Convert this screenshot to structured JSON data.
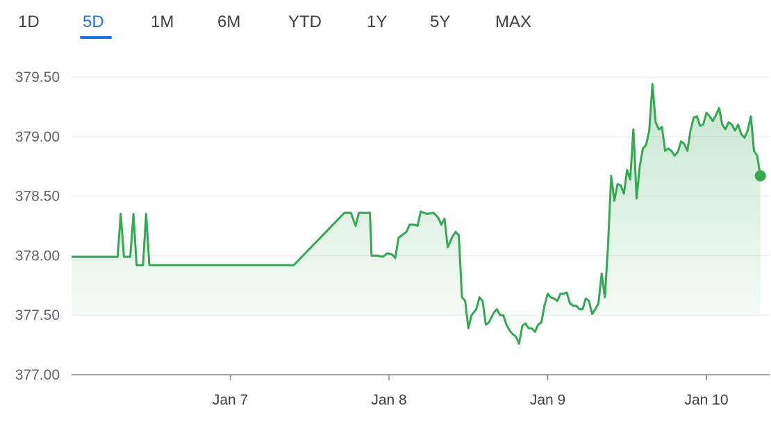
{
  "range_tabs": [
    {
      "label": "1D",
      "active": false
    },
    {
      "label": "5D",
      "active": true
    },
    {
      "label": "1M",
      "active": false
    },
    {
      "label": "6M",
      "active": false
    },
    {
      "label": "YTD",
      "active": false
    },
    {
      "label": "1Y",
      "active": false
    },
    {
      "label": "5Y",
      "active": false
    },
    {
      "label": "MAX",
      "active": false
    }
  ],
  "colors": {
    "line": "#34a853",
    "fill_top": "#34a853",
    "active_tab": "#1a73e8",
    "grid": "#e8eaed",
    "axis": "#80868b"
  },
  "chart_data": {
    "type": "area",
    "title": "",
    "xlabel": "",
    "ylabel": "",
    "ylim": [
      377.0,
      379.5
    ],
    "yticks": [
      "379.50",
      "379.00",
      "378.50",
      "378.00",
      "377.50",
      "377.00"
    ],
    "yticks_values": [
      379.5,
      379.0,
      378.5,
      378.0,
      377.5,
      377.0
    ],
    "xticks": [
      {
        "label": "Jan 7",
        "x": 1.0
      },
      {
        "label": "Jan 8",
        "x": 2.0
      },
      {
        "label": "Jan 9",
        "x": 3.0
      },
      {
        "label": "Jan 10",
        "x": 4.0
      }
    ],
    "xlim": [
      0.0,
      4.4
    ],
    "grid": true,
    "series": [
      {
        "points": [
          [
            0.0,
            377.99
          ],
          [
            0.29,
            377.99
          ],
          [
            0.31,
            378.35
          ],
          [
            0.33,
            377.99
          ],
          [
            0.37,
            377.99
          ],
          [
            0.39,
            378.35
          ],
          [
            0.41,
            377.92
          ],
          [
            0.45,
            377.92
          ],
          [
            0.47,
            378.35
          ],
          [
            0.49,
            377.92
          ],
          [
            1.4,
            377.92
          ],
          [
            1.72,
            378.36
          ],
          [
            1.76,
            378.36
          ],
          [
            1.79,
            378.25
          ],
          [
            1.81,
            378.36
          ],
          [
            1.88,
            378.36
          ],
          [
            1.89,
            378.0
          ],
          [
            1.93,
            378.0
          ],
          [
            1.96,
            377.99
          ],
          [
            1.99,
            378.02
          ],
          [
            2.02,
            378.01
          ],
          [
            2.04,
            377.98
          ],
          [
            2.06,
            378.15
          ],
          [
            2.09,
            378.18
          ],
          [
            2.11,
            378.2
          ],
          [
            2.13,
            378.26
          ],
          [
            2.16,
            378.26
          ],
          [
            2.18,
            378.25
          ],
          [
            2.2,
            378.37
          ],
          [
            2.24,
            378.35
          ],
          [
            2.28,
            378.36
          ],
          [
            2.31,
            378.32
          ],
          [
            2.33,
            378.26
          ],
          [
            2.35,
            378.31
          ],
          [
            2.37,
            378.07
          ],
          [
            2.4,
            378.16
          ],
          [
            2.42,
            378.2
          ],
          [
            2.44,
            378.17
          ],
          [
            2.46,
            377.65
          ],
          [
            2.48,
            377.62
          ],
          [
            2.5,
            377.39
          ],
          [
            2.52,
            377.5
          ],
          [
            2.55,
            377.55
          ],
          [
            2.57,
            377.65
          ],
          [
            2.59,
            377.62
          ],
          [
            2.61,
            377.42
          ],
          [
            2.63,
            377.44
          ],
          [
            2.66,
            377.52
          ],
          [
            2.68,
            377.55
          ],
          [
            2.7,
            377.5
          ],
          [
            2.72,
            377.5
          ],
          [
            2.74,
            377.42
          ],
          [
            2.76,
            377.37
          ],
          [
            2.78,
            377.34
          ],
          [
            2.8,
            377.32
          ],
          [
            2.82,
            377.26
          ],
          [
            2.84,
            377.41
          ],
          [
            2.86,
            377.43
          ],
          [
            2.88,
            377.39
          ],
          [
            2.9,
            377.39
          ],
          [
            2.92,
            377.36
          ],
          [
            2.94,
            377.42
          ],
          [
            2.96,
            377.44
          ],
          [
            2.98,
            377.58
          ],
          [
            3.0,
            377.68
          ],
          [
            3.02,
            377.65
          ],
          [
            3.04,
            377.64
          ],
          [
            3.06,
            377.62
          ],
          [
            3.08,
            377.68
          ],
          [
            3.1,
            377.68
          ],
          [
            3.12,
            377.69
          ],
          [
            3.14,
            377.6
          ],
          [
            3.16,
            377.58
          ],
          [
            3.18,
            377.58
          ],
          [
            3.2,
            377.55
          ],
          [
            3.22,
            377.55
          ],
          [
            3.24,
            377.64
          ],
          [
            3.26,
            377.62
          ],
          [
            3.28,
            377.51
          ],
          [
            3.3,
            377.55
          ],
          [
            3.32,
            377.6
          ],
          [
            3.34,
            377.85
          ],
          [
            3.36,
            377.65
          ],
          [
            3.38,
            378.08
          ],
          [
            3.4,
            378.67
          ],
          [
            3.42,
            378.46
          ],
          [
            3.44,
            378.6
          ],
          [
            3.46,
            378.59
          ],
          [
            3.48,
            378.52
          ],
          [
            3.5,
            378.72
          ],
          [
            3.52,
            378.64
          ],
          [
            3.54,
            379.06
          ],
          [
            3.56,
            378.48
          ],
          [
            3.58,
            378.75
          ],
          [
            3.6,
            378.9
          ],
          [
            3.62,
            378.93
          ],
          [
            3.64,
            379.05
          ],
          [
            3.66,
            379.44
          ],
          [
            3.68,
            379.12
          ],
          [
            3.7,
            379.06
          ],
          [
            3.72,
            379.08
          ],
          [
            3.74,
            378.88
          ],
          [
            3.76,
            378.9
          ],
          [
            3.78,
            378.88
          ],
          [
            3.8,
            378.84
          ],
          [
            3.82,
            378.87
          ],
          [
            3.84,
            378.96
          ],
          [
            3.86,
            378.94
          ],
          [
            3.88,
            378.88
          ],
          [
            3.9,
            379.05
          ],
          [
            3.92,
            379.16
          ],
          [
            3.94,
            379.17
          ],
          [
            3.96,
            379.09
          ],
          [
            3.98,
            379.1
          ],
          [
            4.0,
            379.2
          ],
          [
            4.02,
            379.17
          ],
          [
            4.04,
            379.13
          ],
          [
            4.06,
            379.18
          ],
          [
            4.08,
            379.24
          ],
          [
            4.1,
            379.1
          ],
          [
            4.12,
            379.06
          ],
          [
            4.14,
            379.12
          ],
          [
            4.16,
            379.1
          ],
          [
            4.18,
            379.05
          ],
          [
            4.2,
            379.1
          ],
          [
            4.22,
            379.02
          ],
          [
            4.24,
            378.99
          ],
          [
            4.26,
            379.05
          ],
          [
            4.28,
            379.17
          ],
          [
            4.3,
            378.88
          ],
          [
            4.32,
            378.84
          ],
          [
            4.34,
            378.67
          ]
        ]
      }
    ],
    "last_point": [
      4.34,
      378.67
    ]
  }
}
